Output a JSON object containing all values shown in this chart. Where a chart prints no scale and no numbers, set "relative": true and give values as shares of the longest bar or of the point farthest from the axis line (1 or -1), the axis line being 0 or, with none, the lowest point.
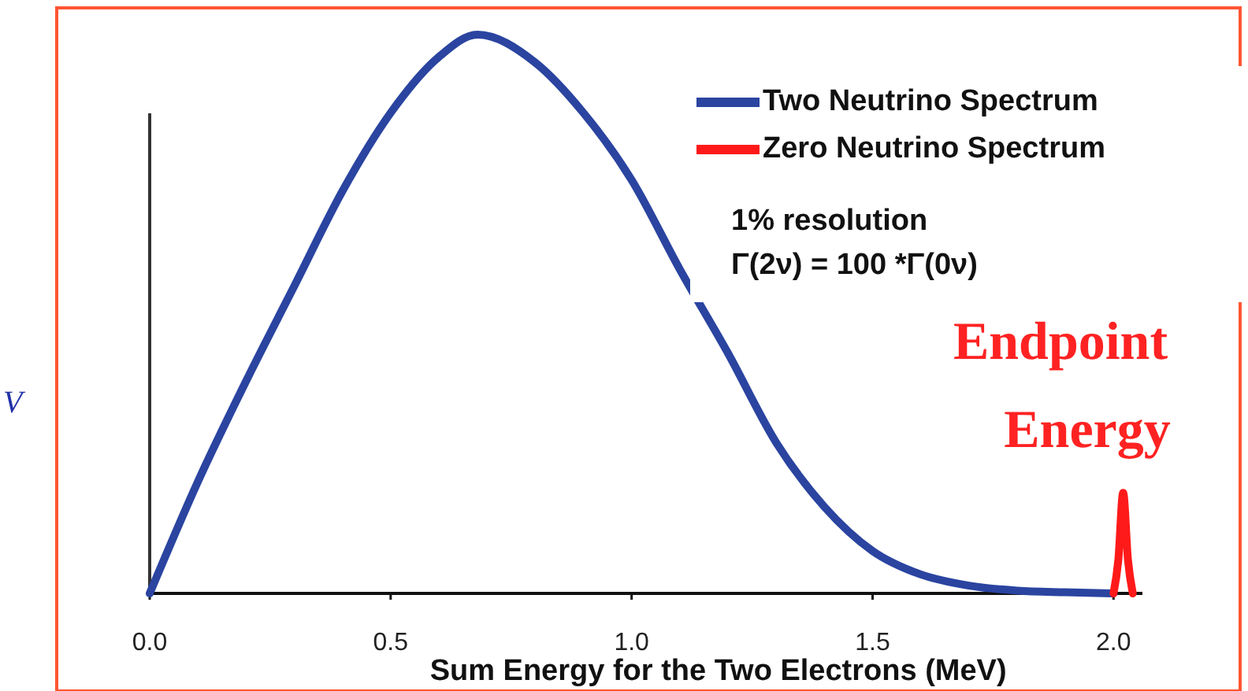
{
  "chart_data": {
    "type": "line",
    "relative": true,
    "xlabel": "Sum Energy for the Two Electrons (MeV)",
    "xlim": [
      0,
      2.06
    ],
    "xticks": [
      {
        "value": 0,
        "label": "0.0"
      },
      {
        "value": 0.5,
        "label": "0.5"
      },
      {
        "value": 1,
        "label": "1.0"
      },
      {
        "value": 1.5,
        "label": "1.5"
      },
      {
        "value": 2,
        "label": "2.0"
      }
    ],
    "series": [
      {
        "name": "Two Neutrino Spectrum",
        "color": "#2a44a0",
        "x": [
          0,
          0.1,
          0.2,
          0.3,
          0.4,
          0.5,
          0.6,
          0.68,
          0.8,
          0.9,
          1.0,
          1.1,
          1.2,
          1.3,
          1.4,
          1.5,
          1.6,
          1.7,
          1.8,
          1.9,
          2.0
        ],
        "values": [
          0,
          0.2,
          0.38,
          0.55,
          0.72,
          0.86,
          0.96,
          1,
          0.95,
          0.86,
          0.74,
          0.58,
          0.43,
          0.27,
          0.155,
          0.076,
          0.034,
          0.014,
          0.005,
          0.002,
          0
        ]
      },
      {
        "name": "Zero Neutrino Spectrum",
        "color": "#ff1a1a",
        "x": [
          2.0,
          2.01,
          2.02,
          2.03,
          2.04
        ],
        "values": [
          0,
          0.06,
          0.18,
          0.06,
          0
        ]
      }
    ],
    "legend": "top right",
    "marker": "none",
    "line_style": "solid",
    "annotations": [
      "1% resolution",
      "Γ(2ν) = 100 *Γ(0ν)",
      "Endpoint Energy",
      "V"
    ]
  }
}
